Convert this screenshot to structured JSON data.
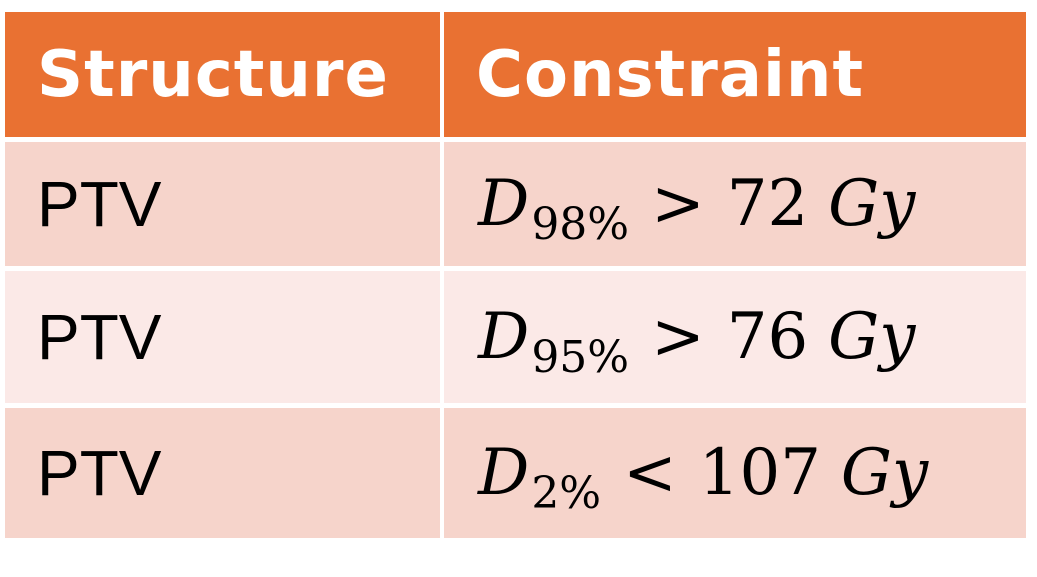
{
  "table": {
    "headers": {
      "structure": "Structure",
      "constraint": "Constraint"
    },
    "rows": [
      {
        "structure": "PTV",
        "constraint": {
          "var": "D",
          "sub": "98%",
          "op": ">",
          "value": "72",
          "unit": "Gy"
        }
      },
      {
        "structure": "PTV",
        "constraint": {
          "var": "D",
          "sub": "95%",
          "op": ">",
          "value": "76",
          "unit": "Gy"
        }
      },
      {
        "structure": "PTV",
        "constraint": {
          "var": "D",
          "sub": "2%",
          "op": "<",
          "value": "107",
          "unit": "Gy"
        }
      }
    ]
  },
  "colors": {
    "header_bg": "#e97132",
    "row_dark": "#f6d4cb",
    "row_light": "#fbe9e7"
  }
}
